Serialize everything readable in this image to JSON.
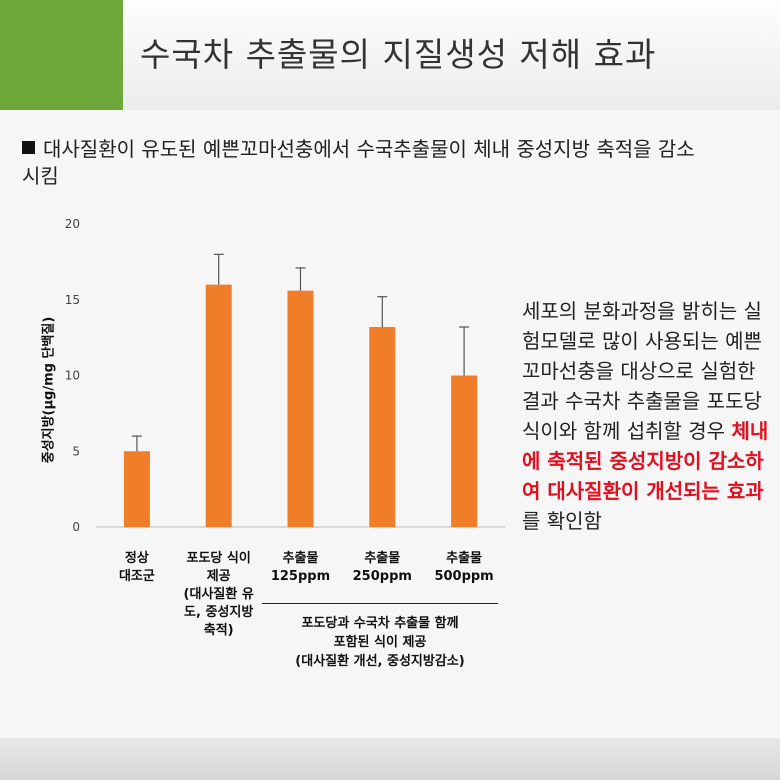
{
  "slide": {
    "title": "수국차 추출물의 지질생성 저해 효과",
    "bullet_line1": "대사질환이 유도된 예쁜꼬마선충에서 수국추출물이 체내 중성지방 축적을 감소",
    "bullet_line2": "시킴",
    "side_text": {
      "part1": "세포의 분화과정을 밝히는 실험모델로 많이 사용되는 예쁜꼬마선충을 대상으로 실험한 결과 수국차 추출물을 포도당식이와 함께 섭취할 경우 ",
      "highlight": "체내에 축적된 중성지방이 감소하여 대사질환이 개선되는 효과",
      "part2": "를 확인함"
    },
    "colors": {
      "accent_green": "#6fa83a",
      "bar": "#f07d27",
      "highlight_red": "#e0101e"
    }
  },
  "chart_data": {
    "type": "bar",
    "ylabel": "중성지방(μg/mg 단백질)",
    "ylim": [
      0,
      20
    ],
    "yticks": [
      "0",
      "5",
      "10",
      "15",
      "20"
    ],
    "categories": [
      [
        "정상",
        "대조군"
      ],
      [
        "포도당 식이",
        "제공",
        "(대사질환 유",
        "도, 중성지방",
        "축적)"
      ],
      [
        "추출물",
        "125ppm"
      ],
      [
        "추출물",
        "250ppm"
      ],
      [
        "추출물",
        "500ppm"
      ]
    ],
    "values": [
      5.0,
      16.0,
      15.6,
      13.2,
      10.0
    ],
    "errors": [
      1.0,
      2.0,
      1.5,
      2.0,
      3.2
    ],
    "group_label": [
      "포도당과 수국차 추출물 함께",
      "포함된 식이 제공",
      "(대사질환 개선, 중성지방감소)"
    ],
    "grid": false
  }
}
